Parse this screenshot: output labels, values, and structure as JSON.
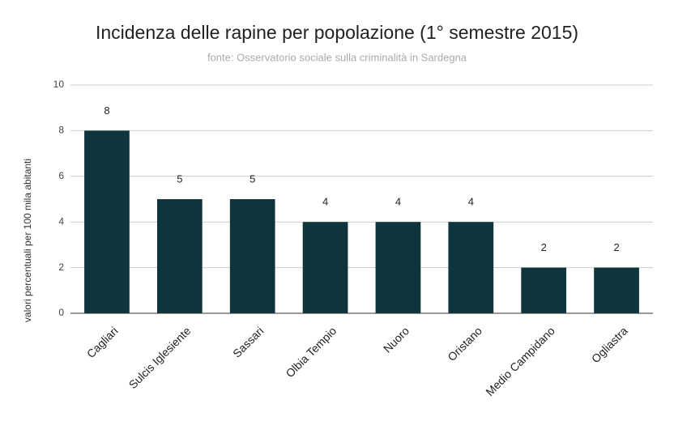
{
  "chart_data": {
    "type": "bar",
    "title": "Incidenza delle rapine per popolazione (1° semestre 2015)",
    "subtitle": "fonte: Osservatorio sociale sulla criminalità in Sardegna",
    "y_label": "valori percentuali per 100 mila abitanti",
    "categories": [
      "Cagliari",
      "Sulcis Iglesiente",
      "Sassari",
      "Olbia Tempio",
      "Nuoro",
      "Oristano",
      "Medio Campidano",
      "Ogliastra"
    ],
    "values": [
      8,
      5,
      5,
      4,
      4,
      4,
      2,
      2
    ],
    "color": "#0e343c",
    "ylim": [
      0,
      10
    ],
    "yticks": [
      0,
      2,
      4,
      6,
      8,
      10
    ],
    "grid": true
  }
}
